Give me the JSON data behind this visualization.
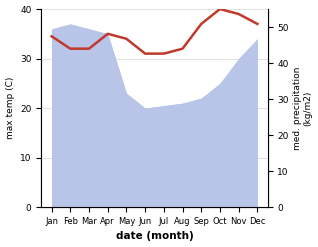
{
  "months": [
    "Jan",
    "Feb",
    "Mar",
    "Apr",
    "May",
    "Jun",
    "Jul",
    "Aug",
    "Sep",
    "Oct",
    "Nov",
    "Dec"
  ],
  "max_temp": [
    34.5,
    32.0,
    32.0,
    35.0,
    34.0,
    31.0,
    31.0,
    32.0,
    37.0,
    40.0,
    39.0,
    37.0
  ],
  "precipitation_left": [
    36.0,
    37.0,
    36.0,
    35.0,
    23.0,
    20.0,
    20.5,
    21.0,
    22.0,
    25.0,
    30.0,
    34.0
  ],
  "temp_color": "#c0392b",
  "precip_fill_color": "#b8c4e8",
  "temp_ylim": [
    0,
    40
  ],
  "precip_ylim": [
    0,
    55
  ],
  "temp_yticks": [
    0,
    10,
    20,
    30,
    40
  ],
  "precip_yticks": [
    0,
    10,
    20,
    30,
    40,
    50
  ],
  "xlabel": "date (month)",
  "ylabel_left": "max temp (C)",
  "ylabel_right": "med. precipitation\n(kg/m2)",
  "fig_width": 3.18,
  "fig_height": 2.47,
  "dpi": 100
}
